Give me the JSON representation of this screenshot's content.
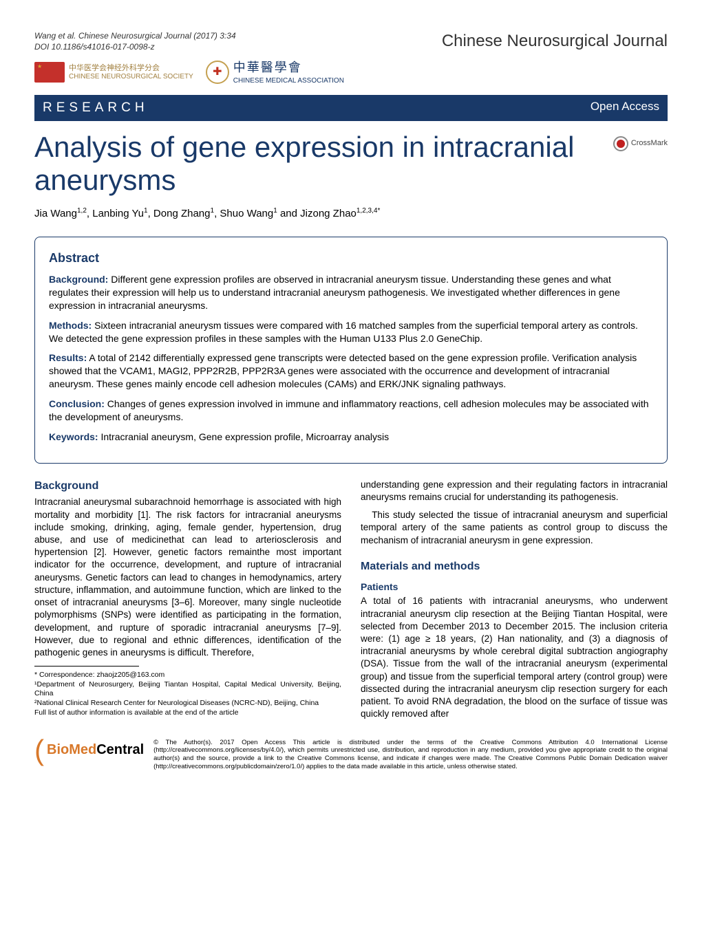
{
  "citation": {
    "line1": "Wang et al. Chinese Neurosurgical Journal (2017) 3:34",
    "line2": "DOI 10.1186/s41016-017-0098-z"
  },
  "journal_name": "Chinese Neurosurgical Journal",
  "logos": {
    "cns": {
      "line1": "中华医学会神经外科学分会",
      "line2": "CHINESE NEUROSURGICAL SOCIETY"
    },
    "cma": {
      "script": "中華醫學會",
      "line2": "CHINESE MEDICAL ASSOCIATION"
    }
  },
  "research_bar": {
    "left": "RESEARCH",
    "right": "Open Access"
  },
  "title": "Analysis of gene expression in intracranial aneurysms",
  "crossmark": "CrossMark",
  "authors_html": "Jia Wang<sup>1,2</sup>, Lanbing Yu<sup>1</sup>, Dong Zhang<sup>1</sup>, Shuo Wang<sup>1</sup> and Jizong Zhao<sup>1,2,3,4*</sup>",
  "abstract": {
    "heading": "Abstract",
    "background_label": "Background:",
    "background": "Different gene expression profiles are observed in intracranial aneurysm tissue. Understanding these genes and what regulates their expression will help us to understand intracranial aneurysm pathogenesis. We investigated whether differences in gene expression in intracranial aneurysms.",
    "methods_label": "Methods:",
    "methods": "Sixteen intracranial aneurysm tissues were compared with 16 matched samples from the superficial temporal artery as controls. We detected the gene expression profiles in these samples with the Human U133 Plus 2.0 GeneChip.",
    "results_label": "Results:",
    "results": "A total of 2142 differentially expressed gene transcripts were detected based on the gene expression profile. Verification analysis showed that the VCAM1, MAGI2, PPP2R2B, PPP2R3A genes were associated with the occurrence and development of intracranial aneurysm. These genes mainly encode cell adhesion molecules (CAMs) and ERK/JNK signaling pathways.",
    "conclusion_label": "Conclusion:",
    "conclusion": "Changes of genes expression involved in immune and inflammatory reactions, cell adhesion molecules may be associated with the development of aneurysms.",
    "keywords_label": "Keywords:",
    "keywords": "Intracranial aneurysm, Gene expression profile, Microarray analysis"
  },
  "body": {
    "background_heading": "Background",
    "background_p1": "Intracranial aneurysmal subarachnoid hemorrhage is associated with high mortality and morbidity [1]. The risk factors for intracranial aneurysms include smoking, drinking, aging, female gender, hypertension, drug abuse, and use of medicinethat can lead to arteriosclerosis and hypertension [2]. However, genetic factors remainthe most important indicator for the occurrence, development, and rupture of intracranial aneurysms. Genetic factors can lead to changes in hemodynamics, artery structure, inflammation, and autoimmune function, which are linked to the onset of intracranial aneurysms [3–6]. Moreover, many single nucleotide polymorphisms (SNPs) were identified as participating in the formation, development, and rupture of sporadic intracranial aneurysms [7–9]. However, due to regional and ethnic differences, identification of the pathogenic genes in aneurysms is difficult. Therefore,",
    "right_p1": "understanding gene expression and their regulating factors in intracranial aneurysms remains crucial for understanding its pathogenesis.",
    "right_p2": "This study selected the tissue of intracranial aneurysm and superficial temporal artery of the same patients as control group to discuss the mechanism of intracranial aneurysm in gene expression.",
    "materials_heading": "Materials and methods",
    "patients_heading": "Patients",
    "patients_p": "A total of 16 patients with intracranial aneurysms, who underwent intracranial aneurysm clip resection at the Beijing Tiantan Hospital, were selected from December 2013 to December 2015. The inclusion criteria were: (1) age ≥ 18 years, (2) Han nationality, and (3) a diagnosis of intracranial aneurysms by whole cerebral digital subtraction angiography (DSA). Tissue from the wall of the intracranial aneurysm (experimental group) and tissue from the superficial temporal artery (control group) were dissected during the intracranial aneurysm clip resection surgery for each patient. To avoid RNA degradation, the blood on the surface of tissue was quickly removed after"
  },
  "footnotes": {
    "corr": "* Correspondence: zhaojz205@163.com",
    "aff1": "¹Department of Neurosurgery, Beijing Tiantan Hospital, Capital Medical University, Beijing, China",
    "aff2": "²National Clinical Research Center for Neurological Diseases (NCRC-ND), Beijing, China",
    "full": "Full list of author information is available at the end of the article"
  },
  "footer": {
    "bmc_bio": "BioMed",
    "bmc_central": " Central",
    "license": "© The Author(s). 2017 Open Access This article is distributed under the terms of the Creative Commons Attribution 4.0 International License (http://creativecommons.org/licenses/by/4.0/), which permits unrestricted use, distribution, and reproduction in any medium, provided you give appropriate credit to the original author(s) and the source, provide a link to the Creative Commons license, and indicate if changes were made. The Creative Commons Public Domain Dedication waiver (http://creativecommons.org/publicdomain/zero/1.0/) applies to the data made available in this article, unless otherwise stated."
  },
  "colors": {
    "brand_blue": "#193968",
    "bmc_orange": "#d8782a"
  }
}
